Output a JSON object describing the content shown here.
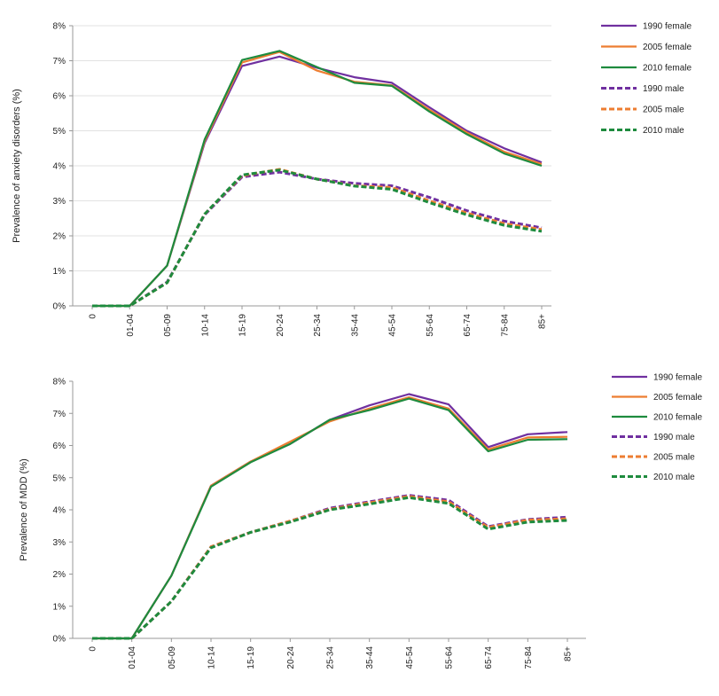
{
  "chart_data": [
    {
      "type": "line",
      "ylabel": "Prevalence of anxiety disorders (%)",
      "xlabel": "",
      "categories": [
        "0",
        "01-04",
        "05-09",
        "10-14",
        "15-19",
        "20-24",
        "25-34",
        "35-44",
        "45-54",
        "55-64",
        "65-74",
        "75-84",
        "85+"
      ],
      "ylim": [
        0,
        8
      ],
      "yticks": [
        0,
        1,
        2,
        3,
        4,
        5,
        6,
        7,
        8
      ],
      "ytick_labels": [
        "0%",
        "1%",
        "2%",
        "3%",
        "4%",
        "5%",
        "6%",
        "7%",
        "8%"
      ],
      "grid": true,
      "legend_position": "right",
      "series": [
        {
          "name": "1990 female",
          "color": "#7030A0",
          "dash": false,
          "values": [
            0,
            0,
            1.15,
            4.65,
            6.85,
            7.12,
            6.8,
            6.53,
            6.37,
            5.67,
            5.0,
            4.5,
            4.1
          ]
        },
        {
          "name": "2005 female",
          "color": "#ED7D31",
          "dash": false,
          "values": [
            0,
            0,
            1.15,
            4.7,
            6.95,
            7.25,
            6.72,
            6.4,
            6.3,
            5.6,
            4.95,
            4.4,
            4.05
          ]
        },
        {
          "name": "2010 female",
          "color": "#1E8B3E",
          "dash": false,
          "values": [
            0,
            0,
            1.15,
            4.75,
            7.02,
            7.28,
            6.82,
            6.37,
            6.28,
            5.55,
            4.9,
            4.35,
            4.0
          ]
        },
        {
          "name": "1990 male",
          "color": "#7030A0",
          "dash": true,
          "values": [
            0,
            0,
            0.68,
            2.6,
            3.68,
            3.82,
            3.62,
            3.5,
            3.43,
            3.1,
            2.72,
            2.42,
            2.23
          ]
        },
        {
          "name": "2005 male",
          "color": "#ED7D31",
          "dash": true,
          "values": [
            0,
            0,
            0.66,
            2.62,
            3.72,
            3.9,
            3.62,
            3.43,
            3.38,
            3.0,
            2.65,
            2.35,
            2.18
          ]
        },
        {
          "name": "2010 male",
          "color": "#1E8B3E",
          "dash": true,
          "values": [
            0,
            0,
            0.66,
            2.62,
            3.74,
            3.88,
            3.62,
            3.42,
            3.33,
            2.95,
            2.6,
            2.3,
            2.13
          ]
        }
      ]
    },
    {
      "type": "line",
      "ylabel": "Prevalence of MDD (%)",
      "xlabel": "",
      "categories": [
        "0",
        "01-04",
        "05-09",
        "10-14",
        "15-19",
        "20-24",
        "25-34",
        "35-44",
        "45-54",
        "55-64",
        "65-74",
        "75-84",
        "85+"
      ],
      "ylim": [
        0,
        8
      ],
      "yticks": [
        0,
        1,
        2,
        3,
        4,
        5,
        6,
        7,
        8
      ],
      "ytick_labels": [
        "0%",
        "1%",
        "2%",
        "3%",
        "4%",
        "5%",
        "6%",
        "7%",
        "8%"
      ],
      "grid": false,
      "legend_position": "right",
      "series": [
        {
          "name": "1990 female",
          "color": "#7030A0",
          "dash": false,
          "values": [
            0,
            0,
            1.95,
            4.75,
            5.5,
            6.05,
            6.8,
            7.25,
            7.6,
            7.28,
            5.95,
            6.35,
            6.42
          ]
        },
        {
          "name": "2005 female",
          "color": "#ED7D31",
          "dash": false,
          "values": [
            0,
            0,
            1.95,
            4.75,
            5.5,
            6.12,
            6.75,
            7.15,
            7.5,
            7.15,
            5.88,
            6.25,
            6.27
          ]
        },
        {
          "name": "2010 female",
          "color": "#1E8B3E",
          "dash": false,
          "values": [
            0,
            0,
            1.95,
            4.72,
            5.48,
            6.05,
            6.8,
            7.1,
            7.46,
            7.1,
            5.82,
            6.18,
            6.2
          ]
        },
        {
          "name": "1990 male",
          "color": "#7030A0",
          "dash": true,
          "values": [
            0,
            0,
            1.15,
            2.85,
            3.3,
            3.65,
            4.05,
            4.25,
            4.45,
            4.3,
            3.48,
            3.7,
            3.77
          ]
        },
        {
          "name": "2005 male",
          "color": "#ED7D31",
          "dash": true,
          "values": [
            0,
            0,
            1.15,
            2.85,
            3.3,
            3.65,
            4.02,
            4.22,
            4.42,
            4.25,
            3.45,
            3.68,
            3.72
          ]
        },
        {
          "name": "2010 male",
          "color": "#1E8B3E",
          "dash": true,
          "values": [
            0,
            0,
            1.15,
            2.82,
            3.3,
            3.62,
            4.0,
            4.18,
            4.38,
            4.2,
            3.4,
            3.62,
            3.67
          ]
        }
      ]
    }
  ]
}
